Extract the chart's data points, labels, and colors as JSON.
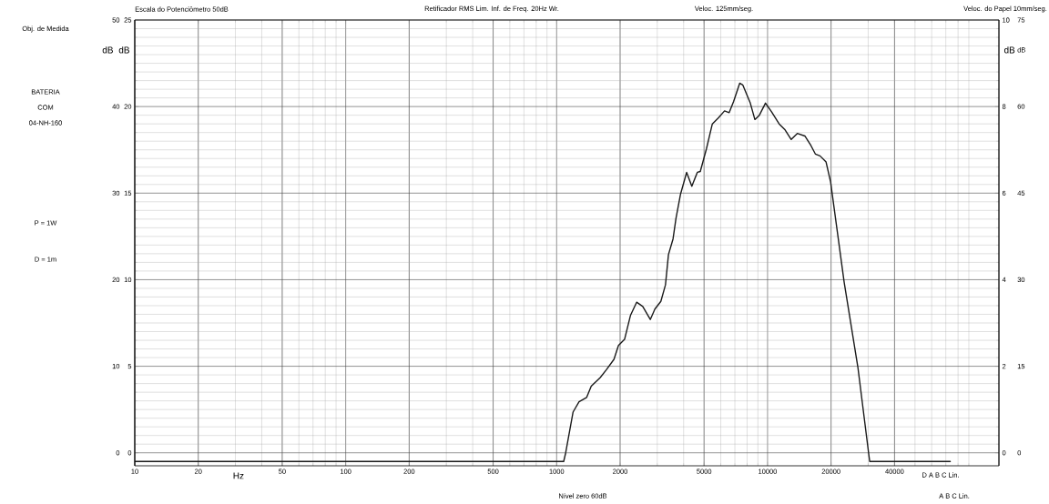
{
  "chart_data": {
    "type": "line",
    "xlabel": "Hz",
    "ylabel": "dB",
    "y2label": "dB",
    "y3label": "dB",
    "annotations": [
      "Escala do Potenciômetro 50dB",
      "Retificador RMS Lim. Inf. de Freq. 20Hz Wr.",
      "Veloc. 125mm/seg.",
      "Veloc. do Papel 10mm/seg.",
      "Obj. de Medida",
      "BATERIA",
      "COM",
      "04-NH-160",
      "P = 1W",
      "D = 1m",
      "Nível zero 60dB",
      "D  A  B  C  Lin.",
      "A  B  C  Lin.",
      "0",
      "15",
      "30",
      "45",
      "60",
      "75",
      "dB"
    ],
    "log": "x",
    "grid": true,
    "marker": "none",
    "line_style": "solid",
    "xlim": [
      10,
      125000
    ],
    "xticks": [
      10,
      20,
      50,
      100,
      200,
      500,
      1000,
      2000,
      5000,
      10000,
      20000,
      40000
    ],
    "ylim": [
      -1.5,
      50
    ],
    "yticks": [
      0,
      10,
      20,
      30,
      40,
      50
    ],
    "y2lim": [
      -0.75,
      25
    ],
    "y2ticks": [
      0,
      5,
      10,
      15,
      20,
      25
    ],
    "y3lim": [
      -0.3,
      10
    ],
    "y3ticks": [
      0,
      2,
      4,
      6,
      8,
      10
    ],
    "series": [
      {
        "color": "#1a1a1a",
        "x": [
          10,
          1080,
          1104,
          1196,
          1277,
          1388,
          1459,
          1610,
          1722,
          1870,
          1964,
          2099,
          2241,
          2395,
          2560,
          2780,
          2923,
          3120,
          3281,
          3390,
          3563,
          3681,
          3870,
          4134,
          4375,
          4645,
          4798,
          5129,
          5473,
          5850,
          6252,
          6577,
          6905,
          7379,
          7627,
          8283,
          8707,
          9144,
          9776,
          10444,
          11346,
          12111,
          12946,
          13834,
          15025,
          16055,
          16870,
          17730,
          18940,
          19900,
          23080,
          26800,
          30090,
          30500,
          73500
        ],
        "values": [
          -1,
          -1,
          0,
          4.7,
          5.9,
          6.4,
          7.7,
          8.7,
          9.6,
          10.8,
          12.4,
          13.1,
          15.9,
          17.4,
          16.9,
          15.4,
          16.6,
          17.5,
          19.4,
          22.9,
          24.7,
          27.1,
          29.9,
          32.4,
          30.8,
          32.4,
          32.5,
          35.1,
          38.0,
          38.7,
          39.5,
          39.3,
          40.6,
          42.7,
          42.5,
          40.4,
          38.5,
          39.0,
          40.4,
          39.4,
          38.0,
          37.3,
          36.2,
          36.9,
          36.6,
          35.5,
          34.5,
          34.3,
          33.6,
          31.3,
          19.7,
          9.9,
          0.1,
          -1,
          -1
        ]
      }
    ]
  }
}
